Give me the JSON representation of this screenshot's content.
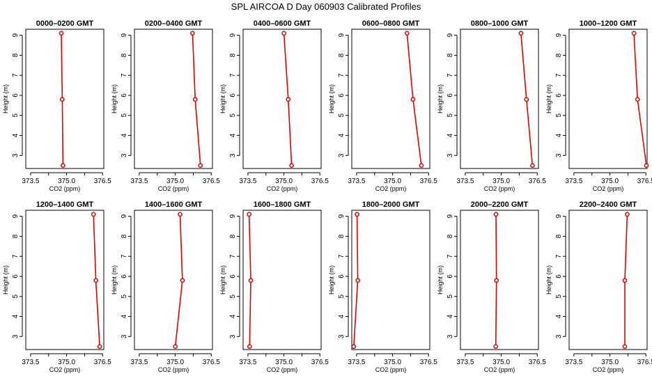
{
  "figure_title": "SPL AIRCOA D  Day 060903  Calibrated Profiles",
  "colors": {
    "line": "#e00000",
    "frame": "#000000"
  },
  "chart_data": [
    {
      "type": "line",
      "title": "0000–0200 GMT",
      "xlabel": "CO2 (ppm)",
      "ylabel": "Height (m)",
      "xlim": [
        373.3,
        376.55
      ],
      "ylim": [
        2.35,
        9.3
      ],
      "xticks": [
        373.5,
        375.0,
        376.5
      ],
      "xticklabels": [
        "373.5",
        "375.0",
        "376.5"
      ],
      "yticks": [
        3,
        4,
        5,
        6,
        7,
        8,
        9
      ],
      "series": [
        {
          "x": [
            374.78,
            374.82,
            374.85
          ],
          "y": [
            9.1,
            5.8,
            2.5
          ]
        }
      ]
    },
    {
      "type": "line",
      "title": "0200–0400 GMT",
      "xlabel": "CO2 (ppm)",
      "ylabel": "Height (m)",
      "xlim": [
        373.3,
        376.55
      ],
      "ylim": [
        2.35,
        9.3
      ],
      "xticks": [
        373.5,
        375.0,
        376.5
      ],
      "xticklabels": [
        "373.5",
        "375.0",
        "376.5"
      ],
      "yticks": [
        3,
        4,
        5,
        6,
        7,
        8,
        9
      ],
      "series": [
        {
          "x": [
            375.72,
            375.83,
            376.05
          ],
          "y": [
            9.1,
            5.8,
            2.5
          ]
        }
      ]
    },
    {
      "type": "line",
      "title": "0400–0600 GMT",
      "xlabel": "CO2 (ppm)",
      "ylabel": "Height (m)",
      "xlim": [
        373.3,
        376.55
      ],
      "ylim": [
        2.35,
        9.3
      ],
      "xticks": [
        373.5,
        375.0,
        376.5
      ],
      "xticklabels": [
        "373.5",
        "375.0",
        "376.5"
      ],
      "yticks": [
        3,
        4,
        5,
        6,
        7,
        8,
        9
      ],
      "series": [
        {
          "x": [
            375.0,
            375.18,
            375.32
          ],
          "y": [
            9.1,
            5.8,
            2.5
          ]
        }
      ]
    },
    {
      "type": "line",
      "title": "0600–0800 GMT",
      "xlabel": "CO2 (ppm)",
      "ylabel": "Height (m)",
      "xlim": [
        373.3,
        376.55
      ],
      "ylim": [
        2.35,
        9.3
      ],
      "xticks": [
        373.5,
        375.0,
        376.5
      ],
      "xticklabels": [
        "373.5",
        "375.0",
        "376.5"
      ],
      "yticks": [
        3,
        4,
        5,
        6,
        7,
        8,
        9
      ],
      "series": [
        {
          "x": [
            375.6,
            375.85,
            376.2
          ],
          "y": [
            9.1,
            5.8,
            2.5
          ]
        }
      ]
    },
    {
      "type": "line",
      "title": "0800–1000 GMT",
      "xlabel": "CO2 (ppm)",
      "ylabel": "Height (m)",
      "xlim": [
        373.3,
        376.55
      ],
      "ylim": [
        2.35,
        9.3
      ],
      "xticks": [
        373.5,
        375.0,
        376.5
      ],
      "xticklabels": [
        "373.5",
        "375.0",
        "376.5"
      ],
      "yticks": [
        3,
        4,
        5,
        6,
        7,
        8,
        9
      ],
      "series": [
        {
          "x": [
            375.82,
            376.05,
            376.3
          ],
          "y": [
            9.1,
            5.8,
            2.5
          ]
        }
      ]
    },
    {
      "type": "line",
      "title": "1000–1200 GMT",
      "xlabel": "CO2 (ppm)",
      "ylabel": "Height (m)",
      "xlim": [
        373.3,
        376.55
      ],
      "ylim": [
        2.35,
        9.3
      ],
      "xticks": [
        373.5,
        375.0,
        376.5
      ],
      "xticklabels": [
        "373.5",
        "375.0",
        "376.5"
      ],
      "yticks": [
        3,
        4,
        5,
        6,
        7,
        8,
        9
      ],
      "series": [
        {
          "x": [
            376.0,
            376.15,
            376.52
          ],
          "y": [
            9.1,
            5.8,
            2.5
          ]
        }
      ]
    },
    {
      "type": "line",
      "title": "1200–1400 GMT",
      "xlabel": "CO2 (ppm)",
      "ylabel": "Height (m)",
      "xlim": [
        373.3,
        376.55
      ],
      "ylim": [
        2.35,
        9.3
      ],
      "xticks": [
        373.5,
        375.0,
        376.5
      ],
      "xticklabels": [
        "373.5",
        "375.0",
        "376.5"
      ],
      "yticks": [
        3,
        4,
        5,
        6,
        7,
        8,
        9
      ],
      "series": [
        {
          "x": [
            376.12,
            376.22,
            376.38
          ],
          "y": [
            9.1,
            5.8,
            2.5
          ]
        }
      ]
    },
    {
      "type": "line",
      "title": "1400–1600 GMT",
      "xlabel": "CO2 (ppm)",
      "ylabel": "Height (m)",
      "xlim": [
        373.3,
        376.55
      ],
      "ylim": [
        2.35,
        9.3
      ],
      "xticks": [
        373.5,
        375.0,
        376.5
      ],
      "xticklabels": [
        "373.5",
        "375.0",
        "376.5"
      ],
      "yticks": [
        3,
        4,
        5,
        6,
        7,
        8,
        9
      ],
      "series": [
        {
          "x": [
            375.2,
            375.3,
            375.0
          ],
          "y": [
            9.1,
            5.8,
            2.5
          ]
        }
      ]
    },
    {
      "type": "line",
      "title": "1600–1800 GMT",
      "xlabel": "CO2 (ppm)",
      "ylabel": "Height (m)",
      "xlim": [
        373.3,
        376.55
      ],
      "ylim": [
        2.35,
        9.3
      ],
      "xticks": [
        373.5,
        375.0,
        376.5
      ],
      "xticklabels": [
        "373.5",
        "375.0",
        "376.5"
      ],
      "yticks": [
        3,
        4,
        5,
        6,
        7,
        8,
        9
      ],
      "series": [
        {
          "x": [
            373.55,
            373.62,
            373.57
          ],
          "y": [
            9.1,
            5.8,
            2.5
          ]
        }
      ]
    },
    {
      "type": "line",
      "title": "1800–2000 GMT",
      "xlabel": "CO2 (ppm)",
      "ylabel": "Height (m)",
      "xlim": [
        373.3,
        376.55
      ],
      "ylim": [
        2.35,
        9.3
      ],
      "xticks": [
        373.5,
        375.0,
        376.5
      ],
      "xticklabels": [
        "373.5",
        "375.0",
        "376.5"
      ],
      "yticks": [
        3,
        4,
        5,
        6,
        7,
        8,
        9
      ],
      "series": [
        {
          "x": [
            373.52,
            373.55,
            373.38
          ],
          "y": [
            9.1,
            5.8,
            2.5
          ]
        }
      ]
    },
    {
      "type": "line",
      "title": "2000–2200 GMT",
      "xlabel": "CO2 (ppm)",
      "ylabel": "Height (m)",
      "xlim": [
        373.3,
        376.55
      ],
      "ylim": [
        2.35,
        9.3
      ],
      "xticks": [
        373.5,
        375.0,
        376.5
      ],
      "xticklabels": [
        "373.5",
        "375.0",
        "376.5"
      ],
      "yticks": [
        3,
        4,
        5,
        6,
        7,
        8,
        9
      ],
      "series": [
        {
          "x": [
            374.78,
            374.8,
            374.77
          ],
          "y": [
            9.1,
            5.8,
            2.5
          ]
        }
      ]
    },
    {
      "type": "line",
      "title": "2200–2400 GMT",
      "xlabel": "CO2 (ppm)",
      "ylabel": "Height (m)",
      "xlim": [
        373.3,
        376.55
      ],
      "ylim": [
        2.35,
        9.3
      ],
      "xticks": [
        373.5,
        375.0,
        376.5
      ],
      "xticklabels": [
        "373.5",
        "375.0",
        "376.5"
      ],
      "yticks": [
        3,
        4,
        5,
        6,
        7,
        8,
        9
      ],
      "series": [
        {
          "x": [
            375.72,
            375.62,
            375.62
          ],
          "y": [
            9.1,
            5.8,
            2.5
          ]
        }
      ]
    }
  ]
}
